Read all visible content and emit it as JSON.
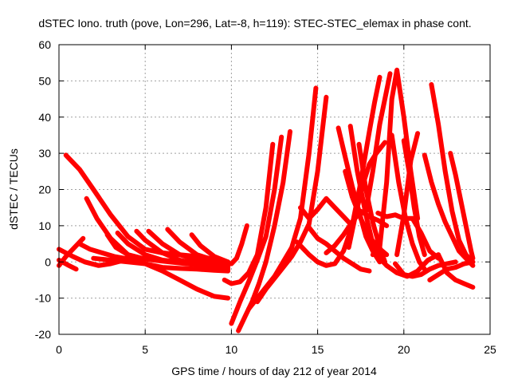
{
  "chart_data": {
    "type": "scatter",
    "title": "dSTEC Iono. truth (pove, Lon=296, Lat=-8, h=119): STEC-STEC_elemax in phase cont.",
    "xlabel": "GPS time / hours of day 212 of year 2014",
    "ylabel": "dSTEC  / TECUs",
    "xlim": [
      0,
      25
    ],
    "ylim": [
      -20,
      60
    ],
    "xticks": [
      0,
      5,
      10,
      15,
      20,
      25
    ],
    "yticks": [
      -20,
      -10,
      0,
      10,
      20,
      30,
      40,
      50,
      60
    ],
    "xtick_labels": [
      "0",
      "5",
      "10",
      "15",
      "20",
      "25"
    ],
    "ytick_labels": [
      "-20",
      "-10",
      "0",
      "10",
      "20",
      "30",
      "40",
      "50",
      "60"
    ],
    "grid": true,
    "marker": "plus",
    "color": "#ff0000",
    "series": [
      {
        "x": [
          0.0,
          0.5,
          1.0
        ],
        "y": [
          0.5,
          -0.8,
          -2.0
        ]
      },
      {
        "x": [
          0.0,
          0.4,
          0.8,
          1.2,
          1.4
        ],
        "y": [
          -1.0,
          1.5,
          3.5,
          5.5,
          6.5
        ]
      },
      {
        "x": [
          0.0,
          0.8,
          1.5,
          2.3,
          3.0,
          3.8,
          4.3
        ],
        "y": [
          3.5,
          1.5,
          0.0,
          -1.0,
          -0.5,
          0.5,
          1.0
        ]
      },
      {
        "x": [
          1.2,
          1.8,
          2.5,
          3.2,
          3.8,
          4.3
        ],
        "y": [
          5.0,
          3.5,
          2.5,
          1.5,
          1.0,
          1.2
        ]
      },
      {
        "x": [
          0.4,
          1.2,
          2.0,
          3.0,
          4.0,
          5.0,
          6.0,
          7.0,
          8.0,
          9.0,
          9.8
        ],
        "y": [
          29.5,
          25.5,
          20.0,
          13.0,
          7.0,
          3.5,
          2.5,
          2.0,
          1.5,
          0.8,
          0.0
        ]
      },
      {
        "x": [
          1.6,
          2.2,
          3.0,
          4.0,
          5.0,
          6.0,
          7.0,
          8.0,
          9.0,
          9.8
        ],
        "y": [
          17.5,
          12.0,
          6.5,
          2.0,
          -0.5,
          -1.5,
          -1.8,
          -2.0,
          -2.3,
          -2.5
        ]
      },
      {
        "x": [
          2.8,
          3.3,
          4.0,
          5.0,
          6.0,
          7.0,
          8.0,
          9.0,
          9.8
        ],
        "y": [
          7.5,
          4.0,
          2.0,
          0.8,
          0.2,
          -0.3,
          -0.8,
          -1.3,
          -2.0
        ]
      },
      {
        "x": [
          3.4,
          4.0,
          5.0,
          6.0,
          7.0,
          8.0,
          9.0,
          9.8
        ],
        "y": [
          8.0,
          5.0,
          2.0,
          0.5,
          0.0,
          -0.3,
          -0.5,
          -0.8
        ]
      },
      {
        "x": [
          4.5,
          5.0,
          6.0,
          7.0,
          8.0,
          9.0,
          9.8
        ],
        "y": [
          8.5,
          6.0,
          2.5,
          0.5,
          -0.5,
          -1.0,
          -1.5
        ]
      },
      {
        "x": [
          5.2,
          6.0,
          7.0,
          8.0,
          9.0,
          9.8
        ],
        "y": [
          8.5,
          5.0,
          2.0,
          0.5,
          -0.5,
          -1.0
        ]
      },
      {
        "x": [
          6.3,
          7.0,
          8.0,
          9.0,
          9.8
        ],
        "y": [
          9.0,
          5.5,
          2.0,
          0.5,
          -0.5
        ]
      },
      {
        "x": [
          7.7,
          8.2,
          9.0,
          9.8
        ],
        "y": [
          7.5,
          4.5,
          1.5,
          0.0
        ]
      },
      {
        "x": [
          2.0,
          3.0,
          4.0,
          5.0,
          6.0,
          7.0,
          8.0,
          9.0,
          9.8
        ],
        "y": [
          1.0,
          0.5,
          0.0,
          -0.5,
          -2.5,
          -5.0,
          -7.5,
          -9.5,
          -10.0
        ]
      },
      {
        "x": [
          9.6,
          10.0,
          10.5,
          11.0,
          11.5,
          12.0,
          12.4
        ],
        "y": [
          -5.0,
          -6.0,
          -5.5,
          -3.0,
          2.0,
          15.0,
          32.5
        ]
      },
      {
        "x": [
          10.0,
          10.5,
          11.0,
          11.5,
          12.0,
          12.5,
          12.9
        ],
        "y": [
          -17.0,
          -11.0,
          -5.5,
          0.5,
          7.0,
          20.0,
          34.5
        ]
      },
      {
        "x": [
          10.4,
          10.8,
          11.2,
          11.6,
          12.0,
          12.5,
          13.0,
          13.4
        ],
        "y": [
          -19.0,
          -15.0,
          -11.0,
          -6.0,
          0.0,
          10.0,
          22.0,
          36.0
        ]
      },
      {
        "x": [
          11.0,
          11.5,
          12.0,
          12.5,
          13.0,
          13.5,
          14.0,
          14.5,
          14.9
        ],
        "y": [
          -13.0,
          -10.0,
          -7.0,
          -4.0,
          0.0,
          4.0,
          12.0,
          30.0,
          48.0
        ]
      },
      {
        "x": [
          11.5,
          12.0,
          12.5,
          13.0,
          13.5,
          14.0,
          14.5,
          15.0,
          15.5
        ],
        "y": [
          -11.0,
          -7.5,
          -4.5,
          -1.5,
          1.5,
          5.5,
          10.5,
          25.0,
          45.5
        ]
      },
      {
        "x": [
          9.5,
          10.0,
          10.3,
          10.6,
          10.9
        ],
        "y": [
          -0.5,
          -0.5,
          1.0,
          5.0,
          10.0
        ]
      },
      {
        "x": [
          13.8,
          14.5,
          15.0,
          15.5,
          16.0,
          16.5,
          17.0,
          17.5
        ],
        "y": [
          5.5,
          2.0,
          0.0,
          -1.0,
          -0.5,
          3.0,
          10.0,
          22.0
        ]
      },
      {
        "x": [
          14.0,
          14.5,
          15.0,
          15.5,
          16.0,
          16.5,
          17.0
        ],
        "y": [
          15.0,
          12.0,
          14.5,
          17.5,
          15.0,
          12.5,
          10.0
        ]
      },
      {
        "x": [
          14.5,
          15.0,
          15.5,
          16.0,
          16.5,
          17.0,
          17.5,
          18.0
        ],
        "y": [
          9.5,
          6.5,
          5.0,
          3.0,
          1.0,
          -0.5,
          -2.0,
          -2.5
        ]
      },
      {
        "x": [
          15.5,
          16.0,
          16.5,
          17.0,
          17.5,
          18.0,
          18.5,
          19.0
        ],
        "y": [
          2.5,
          4.5,
          7.5,
          11.0,
          14.0,
          12.5,
          11.5,
          10.0
        ]
      },
      {
        "x": [
          16.2,
          16.6,
          17.0,
          17.4,
          17.8,
          18.2,
          18.6
        ],
        "y": [
          37.0,
          29.0,
          21.0,
          14.0,
          7.0,
          3.0,
          0.0
        ]
      },
      {
        "x": [
          16.6,
          17.0,
          17.5,
          18.0,
          18.5,
          19.0
        ],
        "y": [
          25.0,
          18.0,
          12.0,
          7.0,
          4.0,
          2.0
        ]
      },
      {
        "x": [
          16.9,
          17.3,
          17.8,
          18.2,
          18.6,
          19.0
        ],
        "y": [
          37.5,
          25.0,
          13.0,
          5.0,
          1.0,
          -1.0
        ]
      },
      {
        "x": [
          17.4,
          17.8,
          18.2,
          18.6,
          18.9
        ],
        "y": [
          32.5,
          20.0,
          11.0,
          4.0,
          0.0
        ]
      },
      {
        "x": [
          16.8,
          17.2,
          17.6,
          18.0,
          18.4,
          18.9
        ],
        "y": [
          4.0,
          13.0,
          21.0,
          27.0,
          30.0,
          33.0
        ]
      },
      {
        "x": [
          17.2,
          17.6,
          18.0,
          18.3,
          18.6
        ],
        "y": [
          13.0,
          25.0,
          36.0,
          44.0,
          51.0
        ]
      },
      {
        "x": [
          17.8,
          18.2,
          18.6,
          18.9,
          19.2
        ],
        "y": [
          14.0,
          25.0,
          38.0,
          45.0,
          52.0
        ]
      },
      {
        "x": [
          18.2,
          18.6,
          19.0,
          19.3,
          19.6,
          20.0,
          20.4,
          20.8
        ],
        "y": [
          2.0,
          4.0,
          22.0,
          45.0,
          53.0,
          40.0,
          25.0,
          12.0
        ]
      },
      {
        "x": [
          19.3,
          19.7,
          20.1,
          20.5,
          20.9,
          21.2
        ],
        "y": [
          35.0,
          22.0,
          12.0,
          5.0,
          0.0,
          -2.0
        ]
      },
      {
        "x": [
          19.6,
          20.0,
          20.4,
          20.8
        ],
        "y": [
          2.0,
          13.0,
          28.0,
          35.5
        ]
      },
      {
        "x": [
          20.0,
          20.3,
          20.6,
          20.9,
          21.2
        ],
        "y": [
          33.5,
          25.0,
          15.0,
          7.0,
          2.0
        ]
      },
      {
        "x": [
          19.0,
          19.6,
          20.2,
          20.8,
          21.4,
          22.0
        ],
        "y": [
          -1.0,
          -3.0,
          -4.0,
          -2.5,
          0.5,
          2.0
        ]
      },
      {
        "x": [
          18.5,
          19.0,
          19.5,
          20.0,
          20.5,
          21.0,
          21.5,
          22.0
        ],
        "y": [
          13.5,
          12.5,
          13.0,
          12.0,
          12.0,
          8.0,
          3.0,
          1.0
        ]
      },
      {
        "x": [
          19.5,
          20.0,
          20.5,
          21.0,
          21.5,
          22.0,
          22.5,
          23.0
        ],
        "y": [
          -0.5,
          -3.5,
          -4.0,
          -3.5,
          -2.0,
          -1.0,
          -0.5,
          0.0
        ]
      },
      {
        "x": [
          21.6,
          22.0,
          22.4,
          22.8,
          23.2,
          23.6,
          24.0
        ],
        "y": [
          49.0,
          38.0,
          25.0,
          14.0,
          6.0,
          2.0,
          0.0
        ]
      },
      {
        "x": [
          21.2,
          21.6,
          22.0,
          22.4,
          22.8,
          23.2,
          23.6,
          24.0
        ],
        "y": [
          29.5,
          22.0,
          16.0,
          11.0,
          7.0,
          3.0,
          1.0,
          -1.0
        ]
      },
      {
        "x": [
          22.7,
          23.0,
          23.3,
          23.6,
          23.9,
          24.0
        ],
        "y": [
          30.0,
          24.0,
          17.0,
          10.0,
          3.0,
          1.0
        ]
      },
      {
        "x": [
          22.0,
          22.5,
          23.0,
          23.5,
          24.0
        ],
        "y": [
          2.0,
          -3.0,
          -5.0,
          -6.0,
          -7.0
        ]
      },
      {
        "x": [
          21.5,
          22.0,
          22.5,
          23.0,
          23.5,
          24.0
        ],
        "y": [
          -5.0,
          -3.5,
          -2.0,
          -1.5,
          -0.5,
          0.0
        ]
      }
    ]
  }
}
